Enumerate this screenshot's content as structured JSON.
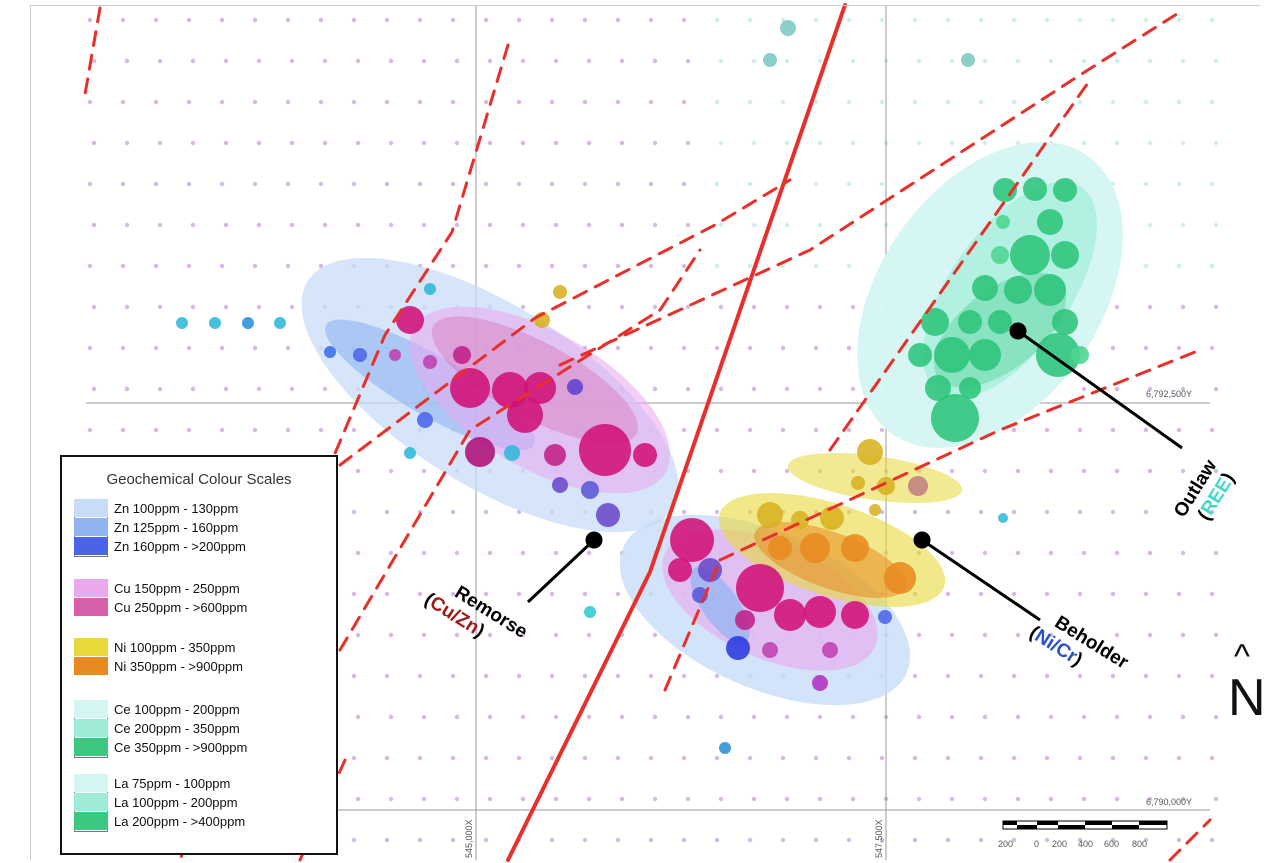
{
  "legend": {
    "title": "Geochemical Colour Scales",
    "groups": [
      {
        "items": [
          {
            "label": "Zn 100ppm - 130ppm",
            "color": "#c8dcf8"
          },
          {
            "label": "Zn 125ppm - 160ppm",
            "color": "#8eb4f0"
          },
          {
            "label": "Zn 160ppm - >200ppm",
            "color": "#4a64e8"
          }
        ]
      },
      {
        "items": [
          {
            "label": "Cu 150ppm - 250ppm",
            "color": "#eaa8ee"
          },
          {
            "label": "Cu 250ppm - >600ppm",
            "color": "#d860a8"
          }
        ]
      },
      {
        "items": [
          {
            "label": "Ni 100ppm - 350ppm",
            "color": "#e8d83a"
          },
          {
            "label": "Ni 350ppm - >900ppm",
            "color": "#e88a20"
          }
        ]
      },
      {
        "items": [
          {
            "label": "Ce 100ppm - 200ppm",
            "color": "#d4f6f2"
          },
          {
            "label": "Ce 200ppm - 350ppm",
            "color": "#9eecd8"
          },
          {
            "label": "Ce 350ppm - >900ppm",
            "color": "#3cc880"
          }
        ]
      },
      {
        "items": [
          {
            "label": "La 75ppm - 100ppm",
            "color": "#d4f6f2"
          },
          {
            "label": "La 100ppm - 200ppm",
            "color": "#9eecd8"
          },
          {
            "label": "La 200ppm - >400ppm",
            "color": "#3cc880"
          }
        ]
      }
    ]
  },
  "targets": {
    "remorse": {
      "name": "Remorse",
      "open": "(",
      "element": "Cu/Zn",
      "close": ")",
      "element_color": "#a01818"
    },
    "beholder": {
      "name": "Beholder",
      "open": "(",
      "element": "Ni/Cr",
      "close": ")",
      "element_color": "#2850c8"
    },
    "outlaw": {
      "name": "Outlaw",
      "open": "(",
      "element": "REE",
      "close": ")",
      "element_color": "#40d8c8"
    }
  },
  "grid": {
    "y_labels": [
      "6,792,500Y",
      "6,790,000Y"
    ],
    "x_labels": [
      "545,000X",
      "547,500X"
    ]
  },
  "scale_bar": {
    "labels": [
      "200",
      "0",
      "200",
      "400",
      "600",
      "800"
    ]
  },
  "north_arrow": {
    "letter": "N",
    "hat": "^"
  },
  "colors": {
    "fault": "#e8302a",
    "zn": "#4a64e8",
    "cu": "#d01078",
    "ni": "#e88a20",
    "ce": "#2cc47a",
    "background_dots": "#c89ad8"
  }
}
